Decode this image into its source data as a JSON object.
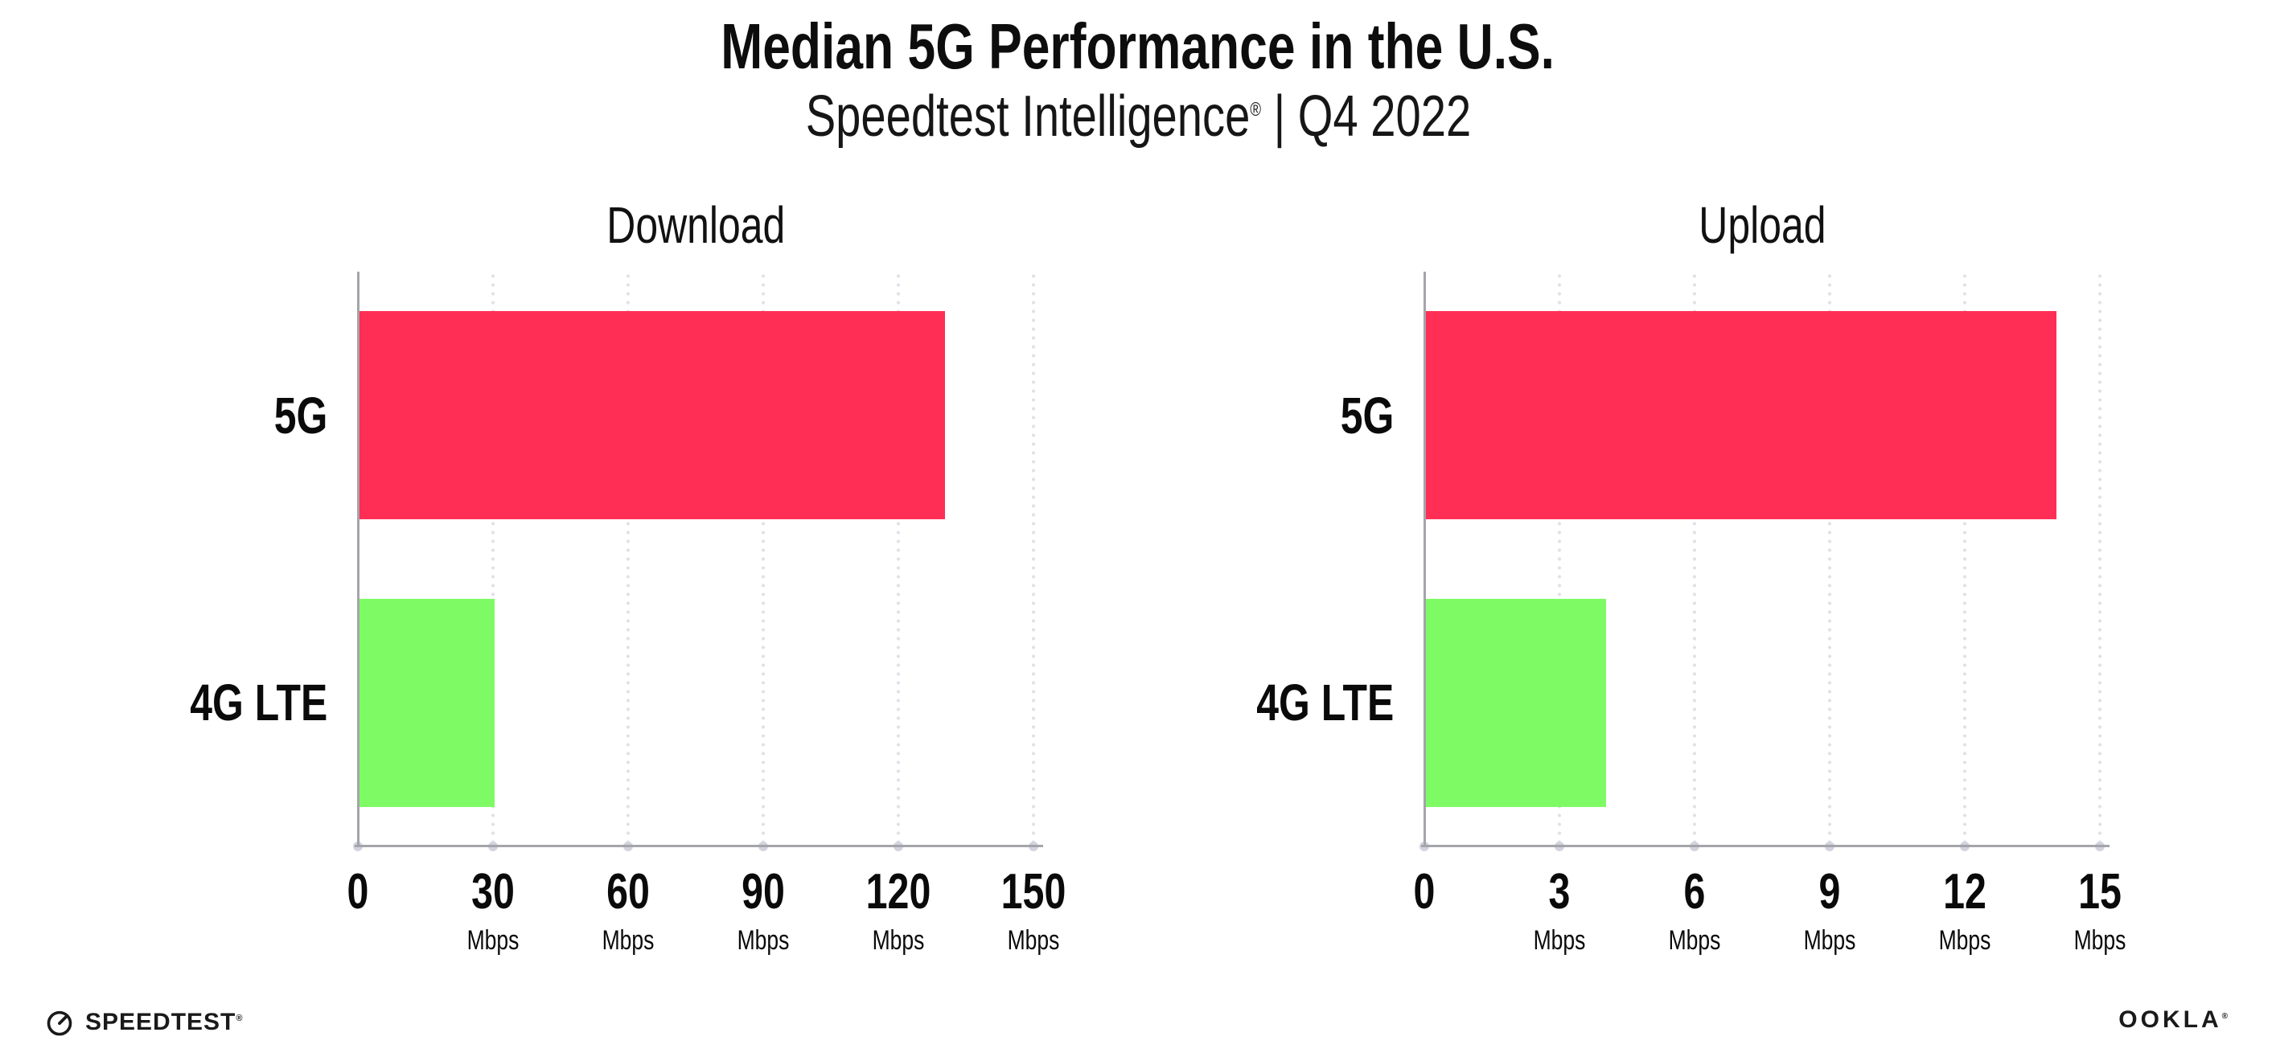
{
  "header": {
    "title": "Median 5G Performance in the U.S.",
    "subtitle_brand": "Speedtest Intelligence",
    "subtitle_reg": "®",
    "subtitle_rest": " | Q4 2022"
  },
  "colors": {
    "bar_5g": "#FF2E55",
    "bar_4g_lte": "#7EFB64",
    "axis": "#A4A4AB",
    "gridline_dot": "#E0E0EA",
    "tick_dot": "#D3D3DF",
    "text": "#0D0D0D",
    "background": "#FFFFFF"
  },
  "chart_data": [
    {
      "type": "bar",
      "orientation": "horizontal",
      "title": "Download",
      "categories": [
        "5G",
        "4G LTE"
      ],
      "values": [
        130,
        30
      ],
      "unit": "Mbps",
      "xlim": [
        0,
        150
      ],
      "xticks": [
        0,
        30,
        60,
        90,
        120,
        150
      ],
      "bar_colors": [
        "#FF2E55",
        "#7EFB64"
      ],
      "grid": "vertical-dotted",
      "legend": "none"
    },
    {
      "type": "bar",
      "orientation": "horizontal",
      "title": "Upload",
      "categories": [
        "5G",
        "4G LTE"
      ],
      "values": [
        14,
        4
      ],
      "unit": "Mbps",
      "xlim": [
        0,
        15
      ],
      "xticks": [
        0,
        3,
        6,
        9,
        12,
        15
      ],
      "bar_colors": [
        "#FF2E55",
        "#7EFB64"
      ],
      "grid": "vertical-dotted",
      "legend": "none"
    }
  ],
  "footer": {
    "speedtest_label": "SPEEDTEST",
    "speedtest_reg": "®",
    "ookla_label": "OOKLA",
    "ookla_reg": "®"
  }
}
